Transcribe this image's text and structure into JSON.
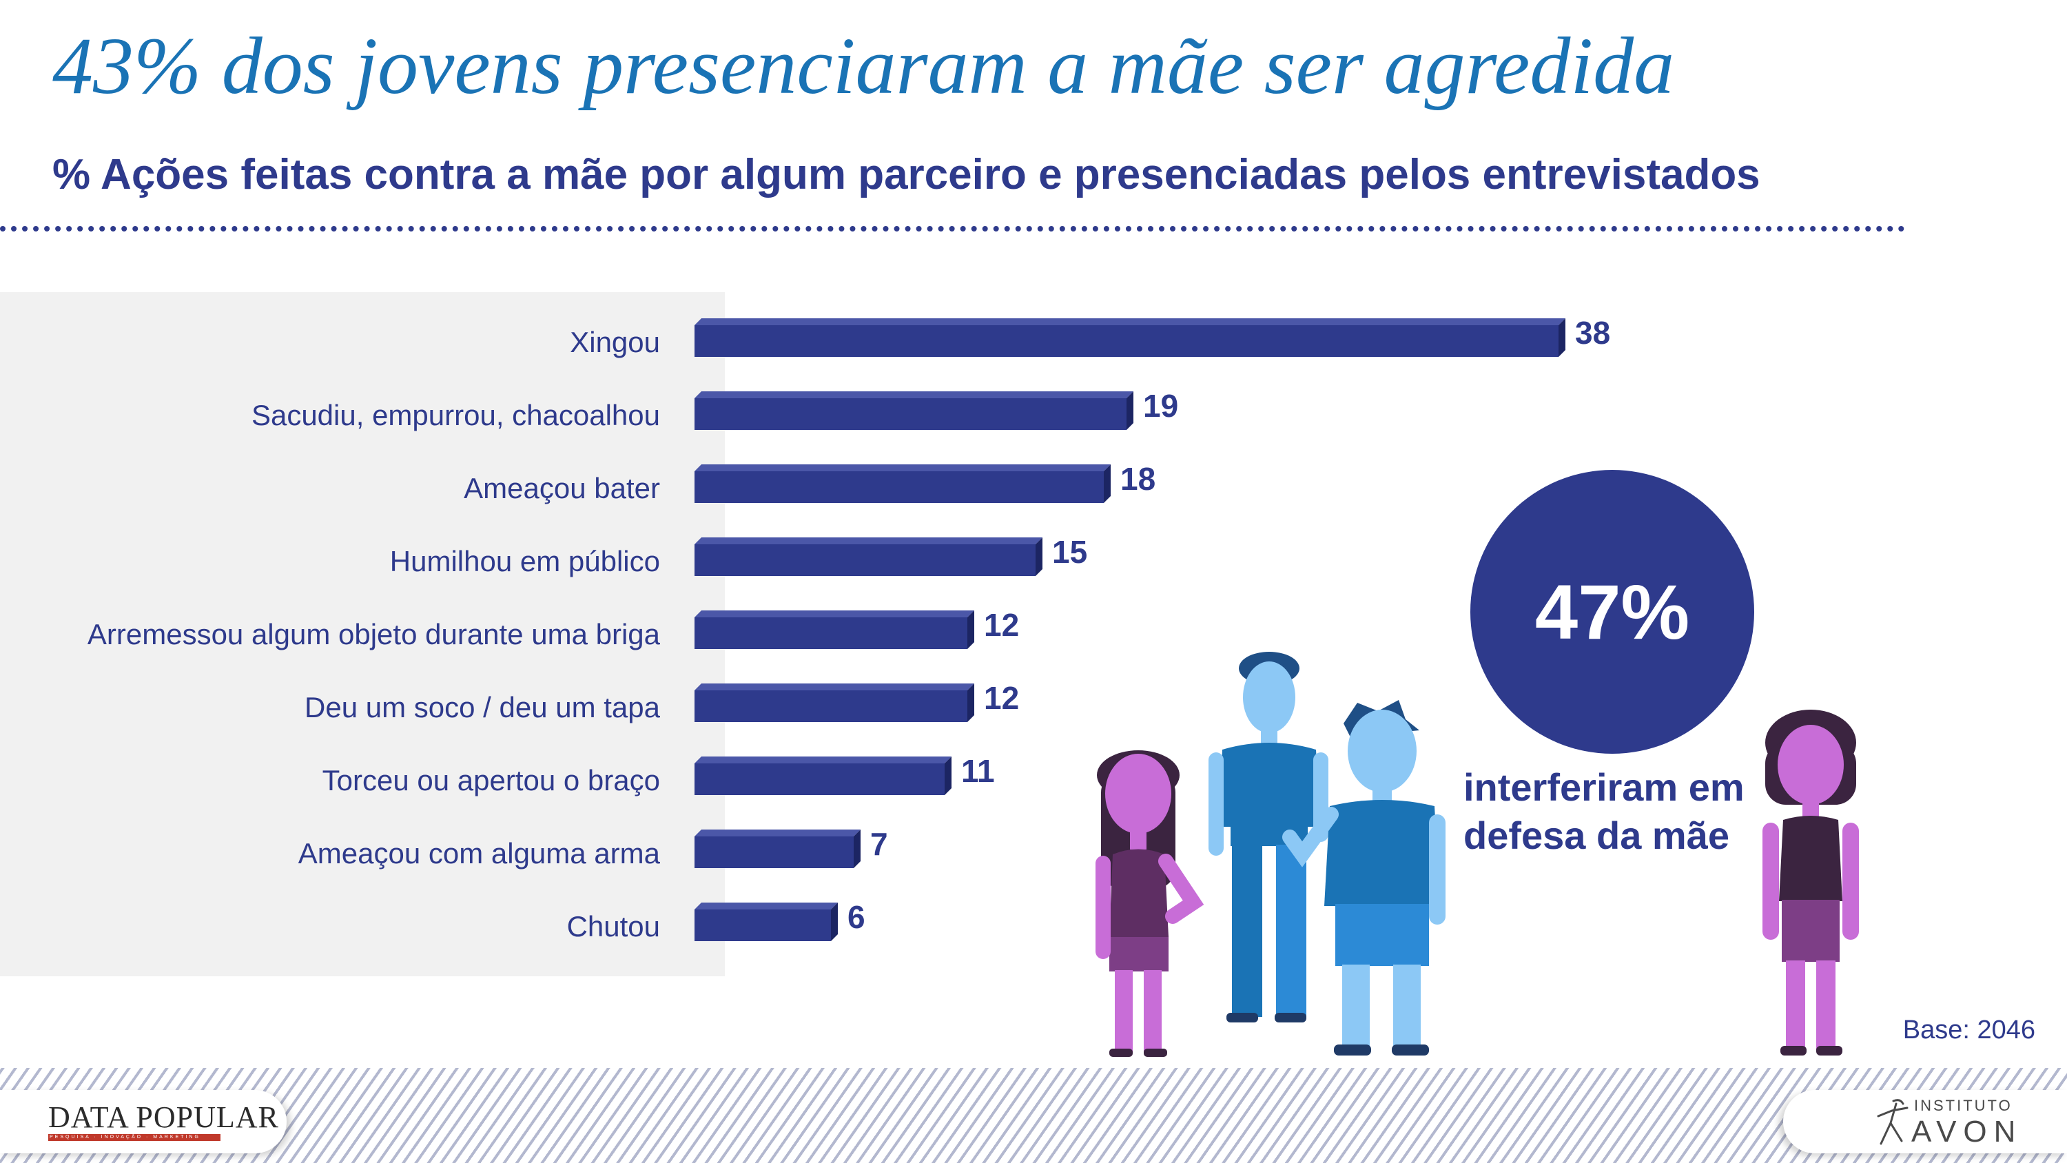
{
  "chart_data": {
    "type": "bar",
    "orientation": "horizontal",
    "title": "43% dos jovens presenciaram a mãe ser agredida",
    "subtitle": "% Ações feitas contra a mãe por algum parceiro e presenciadas pelos entrevistados",
    "categories": [
      "Xingou",
      "Sacudiu, empurrou, chacoalhou",
      "Ameaçou bater",
      "Humilhou em público",
      "Arremessou algum objeto durante uma briga",
      "Deu um soco / deu um tapa",
      "Torceu ou apertou o braço",
      "Ameaçou com alguma arma",
      "Chutou"
    ],
    "values": [
      38,
      19,
      18,
      15,
      12,
      12,
      11,
      7,
      6
    ],
    "xlim": [
      0,
      38
    ],
    "grid": false,
    "legend": "none",
    "bar_color": "#2e3a8c"
  },
  "callout": {
    "value": "47%",
    "text": "interferiram em defesa da mãe"
  },
  "base": "Base: 2046",
  "logos": {
    "left_name": "DATA POPULAR",
    "left_tagline": "PESQUISA · INOVAÇÃO · MARKETING",
    "right_top": "INSTITUTO",
    "right_main": "AVON"
  },
  "colors": {
    "title": "#1a73b5",
    "primary": "#2e3a8c",
    "panel": "#f1f1f1",
    "figure_pink": "#c86dd7",
    "figure_blue": "#1a73b5"
  },
  "icons": [
    "four-people-illustration",
    "avon-dancer-icon"
  ]
}
